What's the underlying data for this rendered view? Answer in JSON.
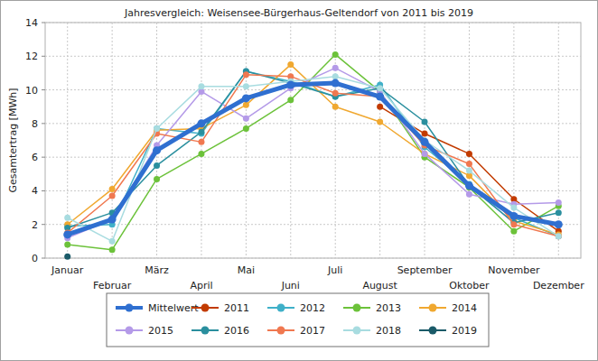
{
  "chart_data": {
    "type": "line",
    "title": "Jahresvergleich: Weisensee-Bürgerhaus-Geltendorf von 2011 bis 2019",
    "y_label": "Gesamtertrag [MWh]",
    "categories": [
      "Januar",
      "Februar",
      "März",
      "April",
      "Mai",
      "Juni",
      "Juli",
      "August",
      "September",
      "Oktober",
      "November",
      "Dezember"
    ],
    "ylim": [
      0,
      14
    ],
    "yticks": [
      0,
      2,
      4,
      6,
      8,
      10,
      12,
      14
    ],
    "grid": true,
    "legend": "bottom",
    "marker": "circle",
    "line_style": "solid",
    "series": [
      {
        "name": "Mittelwert",
        "color": "#2f6fd0",
        "values": [
          1.4,
          2.3,
          6.4,
          8.0,
          9.5,
          10.3,
          10.4,
          9.6,
          6.9,
          4.3,
          2.5,
          2.0
        ]
      },
      {
        "name": "2011",
        "color": "#c23b00",
        "values": [
          null,
          null,
          null,
          null,
          null,
          null,
          null,
          9.0,
          7.4,
          6.2,
          3.5,
          1.6
        ]
      },
      {
        "name": "2012",
        "color": "#3fb0c8",
        "values": [
          1.9,
          2.0,
          7.7,
          7.4,
          11.1,
          10.5,
          9.6,
          10.3,
          6.6,
          4.4,
          2.4,
          1.3
        ]
      },
      {
        "name": "2013",
        "color": "#6cc23a",
        "values": [
          0.8,
          0.5,
          4.7,
          6.2,
          7.7,
          9.4,
          12.1,
          9.9,
          6.0,
          4.2,
          1.6,
          3.1
        ]
      },
      {
        "name": "2014",
        "color": "#f0a830",
        "values": [
          2.0,
          4.1,
          7.6,
          7.7,
          9.1,
          11.5,
          9.0,
          8.1,
          6.2,
          4.9,
          2.2,
          1.4
        ]
      },
      {
        "name": "2015",
        "color": "#b49ae8",
        "values": [
          1.2,
          2.3,
          6.7,
          9.9,
          8.3,
          10.1,
          11.3,
          9.9,
          6.2,
          3.8,
          3.2,
          3.3
        ]
      },
      {
        "name": "2016",
        "color": "#2a8f9e",
        "values": [
          1.8,
          2.7,
          5.5,
          7.5,
          11.1,
          10.4,
          9.6,
          10.1,
          8.1,
          4.3,
          2.1,
          2.7
        ]
      },
      {
        "name": "2017",
        "color": "#f07850",
        "values": [
          1.5,
          3.7,
          7.4,
          6.9,
          10.9,
          10.8,
          9.8,
          9.6,
          6.7,
          5.6,
          2.0,
          1.3
        ]
      },
      {
        "name": "2018",
        "color": "#a8dce0",
        "values": [
          2.4,
          1.0,
          7.7,
          10.2,
          10.2,
          10.5,
          10.8,
          10.1,
          7.0,
          5.2,
          3.0,
          1.3
        ]
      },
      {
        "name": "2019",
        "color": "#1a5a68",
        "values": [
          0.1,
          null,
          null,
          null,
          null,
          null,
          null,
          null,
          null,
          null,
          null,
          null
        ]
      }
    ]
  }
}
